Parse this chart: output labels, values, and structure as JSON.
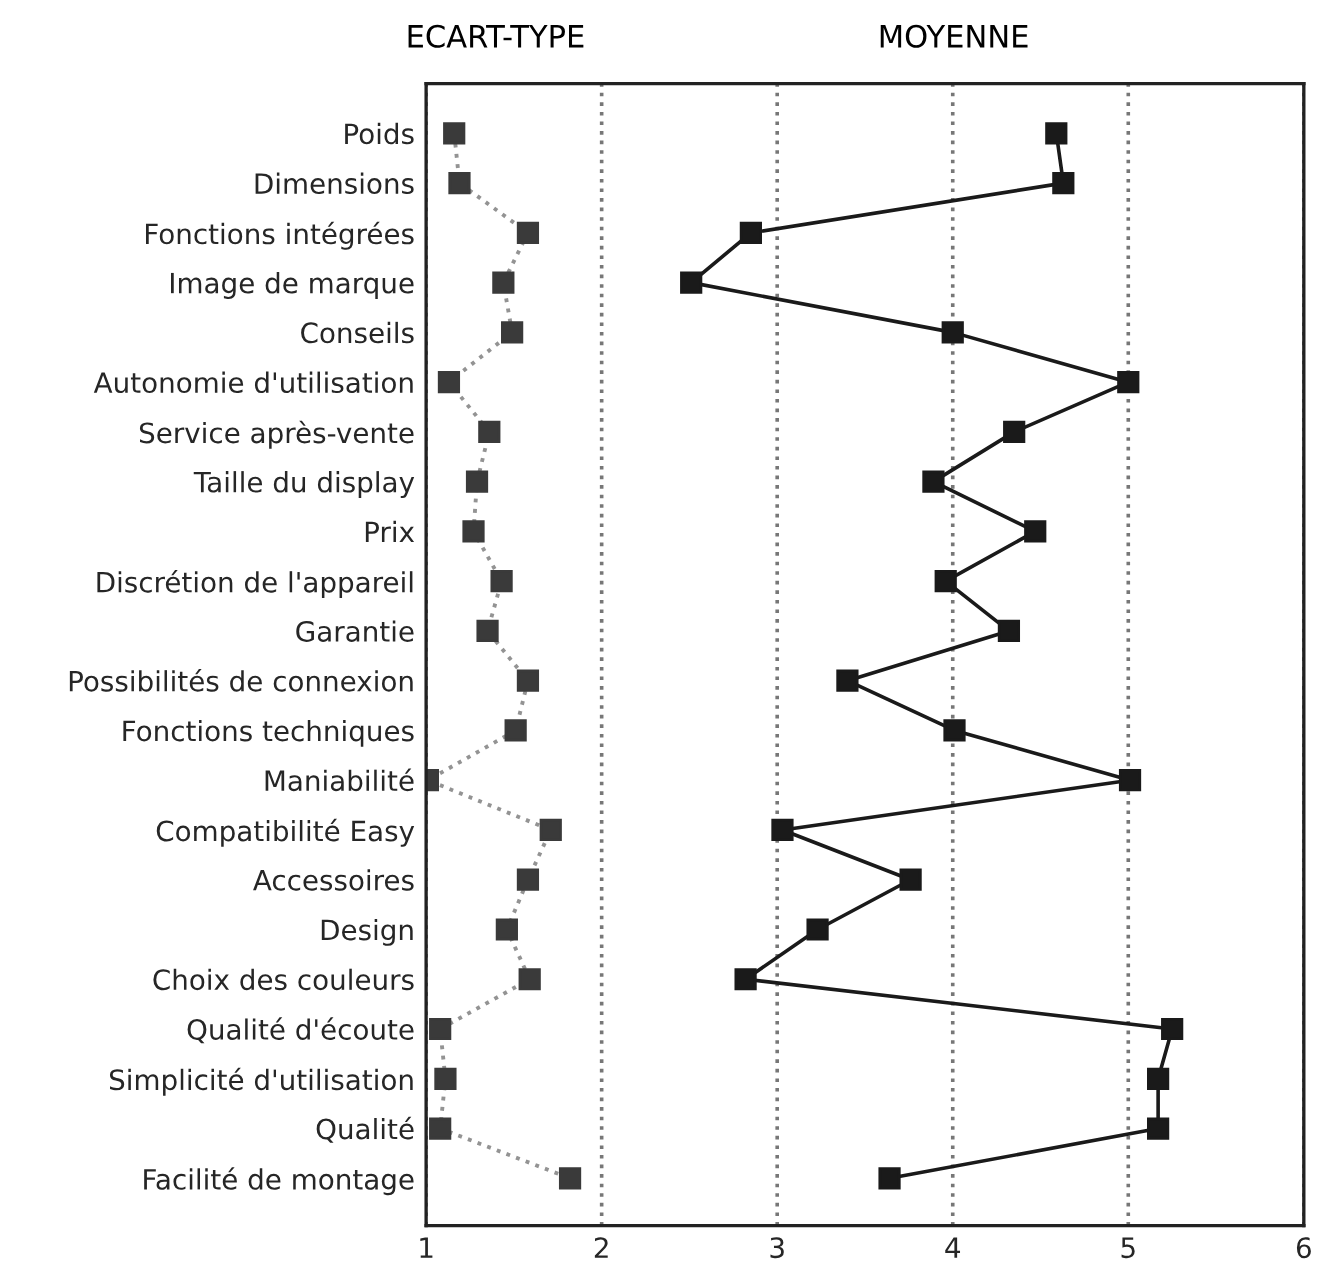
{
  "chart_data": {
    "type": "line",
    "orientation": "horizontal",
    "categories": [
      "Poids",
      "Dimensions",
      "Fonctions intégrées",
      "Image de marque",
      "Conseils",
      "Autonomie d'utilisation",
      "Service après-vente",
      "Taille du display",
      "Prix",
      "Discrétion de l'appareil",
      "Garantie",
      "Possibilités de connexion",
      "Fonctions techniques",
      "Maniabilité",
      "Compatibilité Easy",
      "Accessoires",
      "Design",
      "Choix des couleurs",
      "Qualité d'écoute",
      "Simplicité d'utilisation",
      "Qualité",
      "Facilité de montage"
    ],
    "series": [
      {
        "name": "ECART-TYPE",
        "color": "#3a3a3a",
        "line_style": "dotted",
        "values": [
          1.16,
          1.19,
          1.58,
          1.44,
          1.49,
          1.13,
          1.36,
          1.29,
          1.27,
          1.43,
          1.35,
          1.58,
          1.51,
          1.01,
          1.71,
          1.58,
          1.46,
          1.59,
          1.08,
          1.11,
          1.08,
          1.82
        ]
      },
      {
        "name": "MOYENNE",
        "color": "#1a1a1a",
        "line_style": "solid",
        "values": [
          4.59,
          4.63,
          2.85,
          2.51,
          4.0,
          5.0,
          4.35,
          3.89,
          4.47,
          3.96,
          4.32,
          3.4,
          4.01,
          5.01,
          3.03,
          3.76,
          3.23,
          2.82,
          5.25,
          5.17,
          5.17,
          3.64
        ]
      }
    ],
    "xlim": [
      1,
      6
    ],
    "xticks": [
      1,
      2,
      3,
      4,
      5,
      6
    ],
    "grid": "x",
    "marker": "square",
    "legend": false
  }
}
